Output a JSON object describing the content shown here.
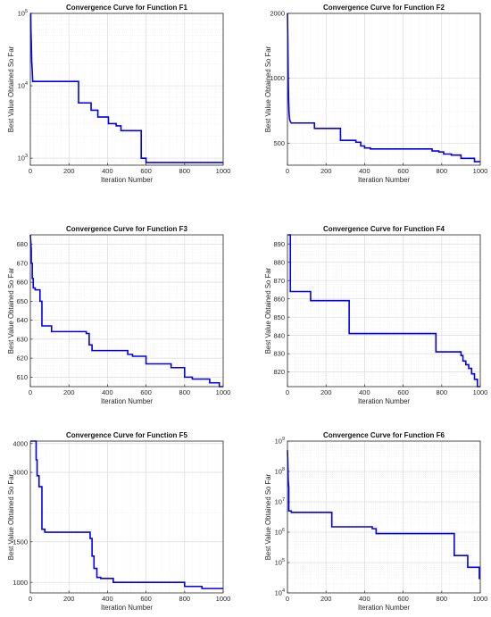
{
  "figure": {
    "colors": {
      "line": "#0000ee",
      "axis": "#262626",
      "grid": "#dcdcdc",
      "minor_grid": "#efefef"
    }
  },
  "chart_data": [
    {
      "type": "line",
      "title": "Convergence Curve for Function F1",
      "xlabel": "Iteration Number",
      "ylabel": "Best Value Obtained So Far",
      "yscale": "log",
      "xlim": [
        0,
        1000
      ],
      "ylim": [
        800,
        100000
      ],
      "xticks": [
        0,
        200,
        400,
        600,
        800,
        1000
      ],
      "yticks": [
        1000,
        10000,
        100000
      ],
      "ytick_labels": [
        [
          "10",
          "3"
        ],
        [
          "10",
          "4"
        ],
        [
          "10",
          "5"
        ]
      ],
      "grid": true,
      "series": [
        {
          "x": [
            0,
            2,
            3,
            5,
            7,
            10,
            12,
            250,
            250,
            315,
            315,
            350,
            350,
            405,
            405,
            445,
            445,
            470,
            470,
            575,
            575,
            600,
            600,
            1000
          ],
          "y": [
            100000,
            100000,
            60000,
            40000,
            22000,
            16000,
            11500,
            11500,
            5800,
            5800,
            4600,
            4600,
            3700,
            3700,
            3000,
            3000,
            2800,
            2800,
            2400,
            2400,
            1000,
            1000,
            870,
            870
          ]
        }
      ]
    },
    {
      "type": "line",
      "title": "Convergence Curve for Function F2",
      "xlabel": "Iteration Number",
      "ylabel": "Best Value Obtained So Far",
      "yscale": "log",
      "xlim": [
        0,
        1000
      ],
      "ylim": [
        395,
        2000
      ],
      "xticks": [
        0,
        200,
        400,
        600,
        800,
        1000
      ],
      "yticks": [
        500,
        1000,
        2000
      ],
      "ytick_labels": [
        "500",
        "1000",
        "2000"
      ],
      "grid": true,
      "series": [
        {
          "x": [
            0,
            2,
            4,
            6,
            8,
            10,
            12,
            15,
            20,
            140,
            140,
            275,
            275,
            355,
            355,
            380,
            380,
            400,
            400,
            430,
            430,
            750,
            750,
            785,
            785,
            810,
            810,
            850,
            850,
            900,
            900,
            970,
            970,
            1000
          ],
          "y": [
            2000,
            1500,
            1000,
            800,
            700,
            660,
            640,
            630,
            620,
            620,
            585,
            585,
            515,
            515,
            505,
            505,
            485,
            485,
            475,
            475,
            470,
            470,
            460,
            460,
            455,
            455,
            445,
            445,
            440,
            440,
            425,
            425,
            410,
            410
          ]
        }
      ]
    },
    {
      "type": "line",
      "title": "Convergence Curve for Function F3",
      "xlabel": "Iteration Number",
      "ylabel": "Best Value Obtained So Far",
      "yscale": "linear",
      "xlim": [
        0,
        1000
      ],
      "ylim": [
        605,
        685
      ],
      "xticks": [
        0,
        200,
        400,
        600,
        800,
        1000
      ],
      "yticks": [
        610,
        620,
        630,
        640,
        650,
        660,
        670,
        680
      ],
      "ytick_labels": [
        "610",
        "620",
        "630",
        "640",
        "650",
        "660",
        "670",
        "680"
      ],
      "grid": true,
      "series": [
        {
          "x": [
            0,
            5,
            5,
            10,
            10,
            15,
            15,
            25,
            25,
            50,
            50,
            60,
            60,
            110,
            110,
            290,
            290,
            305,
            305,
            320,
            320,
            505,
            505,
            530,
            530,
            600,
            600,
            730,
            730,
            800,
            800,
            840,
            840,
            930,
            930,
            980,
            980,
            1000
          ],
          "y": [
            685,
            677,
            670,
            670,
            662,
            662,
            657,
            657,
            656,
            656,
            650,
            650,
            637,
            637,
            634,
            634,
            633,
            633,
            627,
            627,
            624,
            624,
            622,
            622,
            621,
            621,
            617,
            617,
            615,
            615,
            610,
            610,
            609,
            609,
            607,
            607,
            605,
            605
          ]
        }
      ]
    },
    {
      "type": "line",
      "title": "Convergence Curve for Function F4",
      "xlabel": "Iteration Number",
      "ylabel": "Best Value Obtained So Far",
      "yscale": "linear",
      "xlim": [
        0,
        1000
      ],
      "ylim": [
        812,
        895
      ],
      "xticks": [
        0,
        200,
        400,
        600,
        800,
        1000
      ],
      "yticks": [
        820,
        830,
        840,
        850,
        860,
        870,
        880,
        890
      ],
      "ytick_labels": [
        "820",
        "830",
        "840",
        "850",
        "860",
        "870",
        "880",
        "890"
      ],
      "grid": true,
      "series": [
        {
          "x": [
            0,
            15,
            15,
            120,
            120,
            320,
            320,
            770,
            770,
            900,
            900,
            910,
            910,
            925,
            925,
            940,
            940,
            955,
            955,
            970,
            970,
            985,
            985,
            1000
          ],
          "y": [
            895,
            895,
            864,
            864,
            859,
            859,
            841,
            841,
            831,
            831,
            829,
            829,
            826,
            826,
            824,
            824,
            822,
            822,
            819,
            819,
            816,
            816,
            812,
            812
          ]
        }
      ]
    },
    {
      "type": "line",
      "title": "Convergence Curve for Function F5",
      "xlabel": "Iteration Number",
      "ylabel": "Best Value Obtained So Far",
      "yscale": "log",
      "xlim": [
        0,
        1000
      ],
      "ylim": [
        900,
        4100
      ],
      "xticks": [
        0,
        200,
        400,
        600,
        800,
        1000
      ],
      "yticks": [
        1000,
        1500,
        3000,
        4000
      ],
      "ytick_labels": [
        "1000",
        "1500",
        "3000",
        "4000"
      ],
      "grid": true,
      "series": [
        {
          "x": [
            0,
            30,
            30,
            35,
            35,
            45,
            45,
            60,
            60,
            75,
            75,
            175,
            175,
            310,
            310,
            320,
            320,
            330,
            330,
            345,
            345,
            365,
            365,
            430,
            430,
            800,
            800,
            890,
            890,
            1000
          ],
          "y": [
            4100,
            4100,
            3400,
            3400,
            2900,
            2900,
            2600,
            2600,
            1700,
            1700,
            1650,
            1650,
            1650,
            1650,
            1550,
            1550,
            1300,
            1300,
            1150,
            1150,
            1050,
            1050,
            1040,
            1040,
            1000,
            1000,
            960,
            960,
            940,
            940
          ]
        }
      ]
    },
    {
      "type": "line",
      "title": "Convergence Curve for Function F6",
      "xlabel": "Iteration Number",
      "ylabel": "Best Value Obtained So Far",
      "yscale": "log",
      "xlim": [
        0,
        1000
      ],
      "ylim": [
        10000,
        1000000000
      ],
      "xticks": [
        0,
        200,
        400,
        600,
        800,
        1000
      ],
      "yticks": [
        10000,
        100000,
        1000000,
        10000000,
        100000000,
        1000000000
      ],
      "ytick_labels": [
        [
          "10",
          "4"
        ],
        [
          "10",
          "5"
        ],
        [
          "10",
          "6"
        ],
        [
          "10",
          "7"
        ],
        [
          "10",
          "8"
        ],
        [
          "10",
          "9"
        ]
      ],
      "grid": true,
      "series": [
        {
          "x": [
            0,
            2,
            4,
            7,
            7,
            20,
            20,
            230,
            230,
            440,
            440,
            460,
            460,
            865,
            865,
            935,
            935,
            995,
            995,
            1000
          ],
          "y": [
            500000000,
            200000000,
            50000000,
            30000000,
            5000000,
            5000000,
            4500000,
            4500000,
            1500000,
            1500000,
            1300000,
            1300000,
            900000,
            900000,
            170000,
            170000,
            70000,
            70000,
            30000,
            30000
          ]
        }
      ]
    }
  ]
}
